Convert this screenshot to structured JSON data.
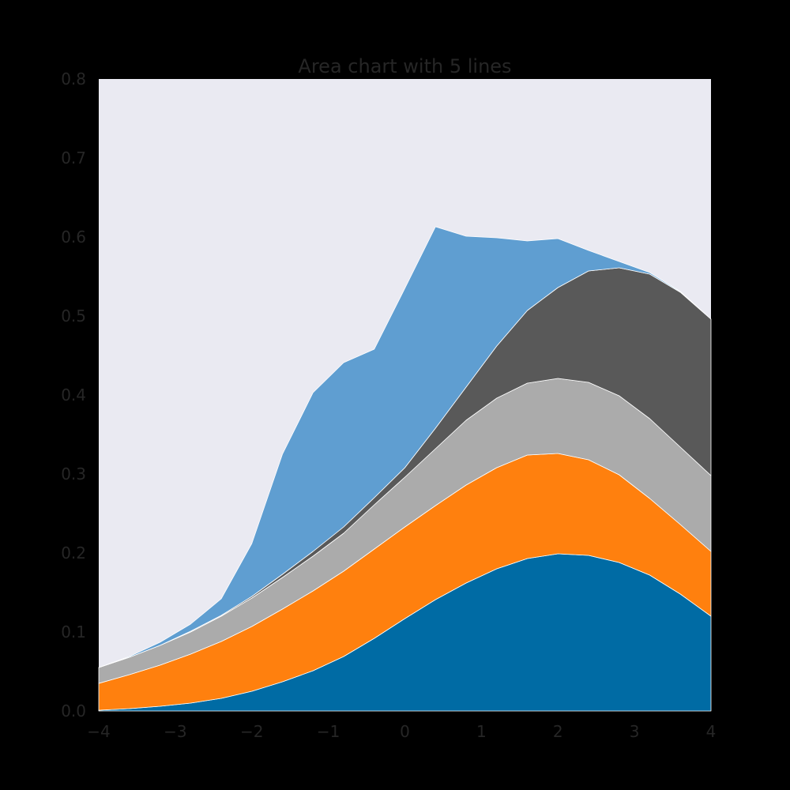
{
  "chart_data": {
    "type": "area",
    "stacked": true,
    "title": "Area chart with 5 lines",
    "xlabel": "",
    "ylabel": "",
    "xlim": [
      -4,
      4
    ],
    "ylim": [
      0,
      0.8
    ],
    "grid": false,
    "legend": "none",
    "xticks": [
      -4,
      -3,
      -2,
      -1,
      0,
      1,
      2,
      3,
      4
    ],
    "xtick_labels": [
      "−4",
      "−3",
      "−2",
      "−1",
      "0",
      "1",
      "2",
      "3",
      "4"
    ],
    "yticks": [
      0.0,
      0.1,
      0.2,
      0.3,
      0.4,
      0.5,
      0.6,
      0.7,
      0.8
    ],
    "ytick_labels": [
      "0.0",
      "0.1",
      "0.2",
      "0.3",
      "0.4",
      "0.5",
      "0.6",
      "0.7",
      "0.8"
    ],
    "x": [
      -4.0,
      -3.6,
      -3.2,
      -2.8,
      -2.4,
      -2.0,
      -1.6,
      -1.2,
      -0.8,
      -0.4,
      0.0,
      0.4,
      0.8,
      1.2,
      1.6,
      2.0,
      2.4,
      2.8,
      3.2,
      3.6,
      4.0
    ],
    "series": [
      {
        "color": "#006BA4",
        "values": [
          0.001,
          0.003,
          0.006,
          0.01,
          0.016,
          0.025,
          0.037,
          0.051,
          0.069,
          0.092,
          0.117,
          0.141,
          0.162,
          0.18,
          0.193,
          0.199,
          0.197,
          0.188,
          0.172,
          0.148,
          0.12
        ]
      },
      {
        "color": "#FF800E",
        "values": [
          0.034,
          0.043,
          0.052,
          0.062,
          0.072,
          0.082,
          0.092,
          0.101,
          0.108,
          0.113,
          0.116,
          0.119,
          0.124,
          0.128,
          0.131,
          0.127,
          0.121,
          0.111,
          0.097,
          0.088,
          0.082
        ]
      },
      {
        "color": "#ABABAB",
        "values": [
          0.02,
          0.022,
          0.025,
          0.028,
          0.032,
          0.036,
          0.04,
          0.044,
          0.048,
          0.056,
          0.063,
          0.072,
          0.082,
          0.088,
          0.091,
          0.095,
          0.098,
          0.1,
          0.101,
          0.098,
          0.096
        ]
      },
      {
        "color": "#595959",
        "values": [
          0.0,
          0.0,
          0.0,
          0.001,
          0.001,
          0.002,
          0.004,
          0.006,
          0.008,
          0.009,
          0.012,
          0.026,
          0.042,
          0.066,
          0.092,
          0.115,
          0.141,
          0.162,
          0.183,
          0.196,
          0.198
        ]
      },
      {
        "color": "#5F9ED1",
        "values": [
          0.0,
          0.001,
          0.004,
          0.009,
          0.021,
          0.067,
          0.152,
          0.201,
          0.208,
          0.188,
          0.227,
          0.255,
          0.191,
          0.137,
          0.088,
          0.062,
          0.026,
          0.008,
          0.002,
          0.001,
          0.0
        ]
      }
    ]
  }
}
